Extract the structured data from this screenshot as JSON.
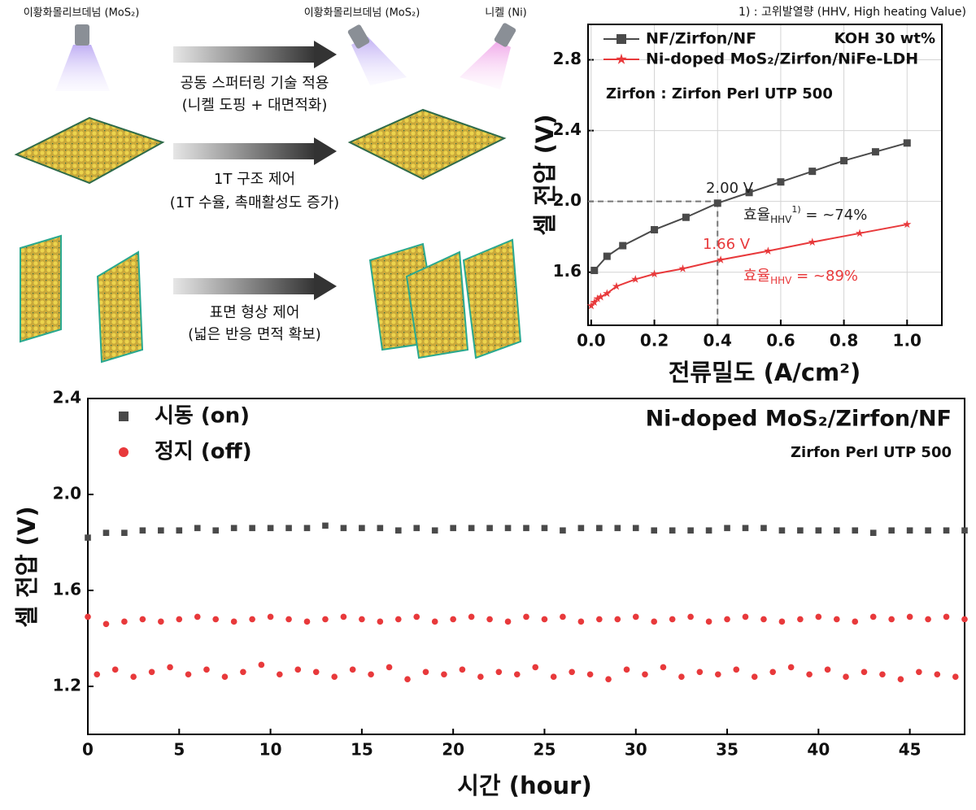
{
  "schematic": {
    "source_left": "이황화몰리브데넘 (MoS₂)",
    "source_mid": "이황화몰리브데넘 (MoS₂)",
    "source_right": "니켈 (Ni)",
    "steps": [
      {
        "title": "공동 스퍼터링 기술 적용",
        "detail": "(니켈 도핑 + 대면적화)"
      },
      {
        "title": "1T 구조 제어",
        "detail": "(1T 수율, 촉매활성도 증가)"
      },
      {
        "title": "표면 형상 제어",
        "detail": "(넓은 반응 면적 확보)"
      }
    ]
  },
  "chart_data": [
    {
      "type": "line",
      "footnote": "1) : 고위발열량 (HHV, High heating Value)",
      "xlabel": "전류밀도 (A/cm²)",
      "ylabel": "셀 전압 (V)",
      "xlim": [
        -0.01,
        1.11
      ],
      "ylim": [
        1.3,
        3.0
      ],
      "xticks": [
        {
          "value": 0,
          "label": "0.0"
        },
        0.2,
        0.4,
        0.6,
        0.8,
        {
          "value": 1,
          "label": "1.0"
        }
      ],
      "yticks": [
        1.6,
        {
          "value": 2,
          "label": "2.0"
        },
        2.4,
        2.8
      ],
      "grid": true,
      "series": [
        {
          "name": "NF/Zirfon/NF",
          "color": "#4a4a4a",
          "marker": "square",
          "x": [
            0.01,
            0.05,
            0.1,
            0.2,
            0.3,
            0.4,
            0.5,
            0.6,
            0.7,
            0.8,
            0.9,
            1.0
          ],
          "values": [
            1.61,
            1.69,
            1.75,
            1.84,
            1.91,
            1.99,
            2.05,
            2.11,
            2.17,
            2.23,
            2.28,
            2.33
          ]
        },
        {
          "name": "Ni-doped MoS₂/Zirfon/NiFe-LDH",
          "color": "#e8393b",
          "marker": "star",
          "x": [
            0.0,
            0.01,
            0.02,
            0.03,
            0.05,
            0.08,
            0.14,
            0.2,
            0.29,
            0.41,
            0.56,
            0.7,
            0.85,
            1.0
          ],
          "values": [
            1.41,
            1.43,
            1.45,
            1.46,
            1.48,
            1.52,
            1.56,
            1.59,
            1.62,
            1.67,
            1.72,
            1.77,
            1.82,
            1.87
          ]
        }
      ],
      "notes": [
        "KOH 30 wt%",
        "Zirfon : Zirfon Perl UTP 500"
      ],
      "reference": {
        "x": 0.4,
        "y": 2.0
      },
      "annotations": [
        {
          "text": "2.00 V",
          "color": "#222222"
        },
        {
          "text": "1.66 V",
          "color": "#e8393b"
        },
        {
          "text": "효율",
          "sub": "HHV",
          "sup": "1)",
          "tail": " = ~74%",
          "color": "#222222"
        },
        {
          "text": "효율",
          "sub": "HHV",
          "tail": " = ~89%",
          "color": "#e8393b"
        }
      ]
    },
    {
      "type": "scatter",
      "title": "Ni-doped MoS₂/Zirfon/NF",
      "subtitle": "Zirfon Perl UTP 500",
      "xlabel": "시간 (hour)",
      "ylabel": "셀 전압 (V)",
      "xlim": [
        0,
        48
      ],
      "ylim": [
        1.0,
        2.4
      ],
      "xticks": [
        0,
        5,
        10,
        15,
        20,
        25,
        30,
        35,
        40,
        45
      ],
      "yticks": [
        1.2,
        1.6,
        {
          "value": 2,
          "label": "2.0"
        },
        2.4
      ],
      "grid": false,
      "series": [
        {
          "name": "시동 (on)",
          "color": "#4a4a4a",
          "marker": "square",
          "x": [
            0,
            1,
            2,
            3,
            4,
            5,
            6,
            7,
            8,
            9,
            10,
            11,
            12,
            13,
            14,
            15,
            16,
            17,
            18,
            19,
            20,
            21,
            22,
            23,
            24,
            25,
            26,
            27,
            28,
            29,
            30,
            31,
            32,
            33,
            34,
            35,
            36,
            37,
            38,
            39,
            40,
            41,
            42,
            43,
            44,
            45,
            46,
            47,
            48
          ],
          "values": [
            1.82,
            1.84,
            1.84,
            1.85,
            1.85,
            1.85,
            1.86,
            1.85,
            1.86,
            1.86,
            1.86,
            1.86,
            1.86,
            1.87,
            1.86,
            1.86,
            1.86,
            1.85,
            1.86,
            1.85,
            1.86,
            1.86,
            1.86,
            1.86,
            1.86,
            1.86,
            1.85,
            1.86,
            1.86,
            1.86,
            1.86,
            1.85,
            1.85,
            1.85,
            1.85,
            1.86,
            1.86,
            1.86,
            1.85,
            1.85,
            1.85,
            1.85,
            1.85,
            1.84,
            1.85,
            1.85,
            1.85,
            1.85,
            1.85
          ]
        },
        {
          "name": "정지 (off)",
          "color": "#e8393b",
          "marker": "circle",
          "x": [
            0,
            0.5,
            1,
            1.5,
            2,
            2.5,
            3,
            3.5,
            4,
            4.5,
            5,
            5.5,
            6,
            6.5,
            7,
            7.5,
            8,
            8.5,
            9,
            9.5,
            10,
            10.5,
            11,
            11.5,
            12,
            12.5,
            13,
            13.5,
            14,
            14.5,
            15,
            15.5,
            16,
            16.5,
            17,
            17.5,
            18,
            18.5,
            19,
            19.5,
            20,
            20.5,
            21,
            21.5,
            22,
            22.5,
            23,
            23.5,
            24,
            24.5,
            25,
            25.5,
            26,
            26.5,
            27,
            27.5,
            28,
            28.5,
            29,
            29.5,
            30,
            30.5,
            31,
            31.5,
            32,
            32.5,
            33,
            33.5,
            34,
            34.5,
            35,
            35.5,
            36,
            36.5,
            37,
            37.5,
            38,
            38.5,
            39,
            39.5,
            40,
            40.5,
            41,
            41.5,
            42,
            42.5,
            43,
            43.5,
            44,
            44.5,
            45,
            45.5,
            46,
            46.5,
            47,
            47.5,
            48
          ],
          "values": [
            1.49,
            1.25,
            1.46,
            1.27,
            1.47,
            1.24,
            1.48,
            1.26,
            1.47,
            1.28,
            1.48,
            1.25,
            1.49,
            1.27,
            1.48,
            1.24,
            1.47,
            1.26,
            1.48,
            1.29,
            1.49,
            1.25,
            1.48,
            1.27,
            1.47,
            1.26,
            1.48,
            1.24,
            1.49,
            1.27,
            1.48,
            1.25,
            1.47,
            1.28,
            1.48,
            1.23,
            1.49,
            1.26,
            1.47,
            1.25,
            1.48,
            1.27,
            1.49,
            1.24,
            1.48,
            1.26,
            1.47,
            1.25,
            1.49,
            1.28,
            1.48,
            1.24,
            1.49,
            1.26,
            1.47,
            1.25,
            1.48,
            1.23,
            1.48,
            1.27,
            1.49,
            1.25,
            1.47,
            1.28,
            1.48,
            1.24,
            1.49,
            1.26,
            1.47,
            1.25,
            1.48,
            1.27,
            1.49,
            1.24,
            1.48,
            1.26,
            1.47,
            1.28,
            1.48,
            1.25,
            1.49,
            1.27,
            1.48,
            1.24,
            1.47,
            1.26,
            1.49,
            1.25,
            1.48,
            1.23,
            1.49,
            1.26,
            1.48,
            1.25,
            1.49,
            1.24,
            1.48
          ]
        }
      ]
    }
  ]
}
